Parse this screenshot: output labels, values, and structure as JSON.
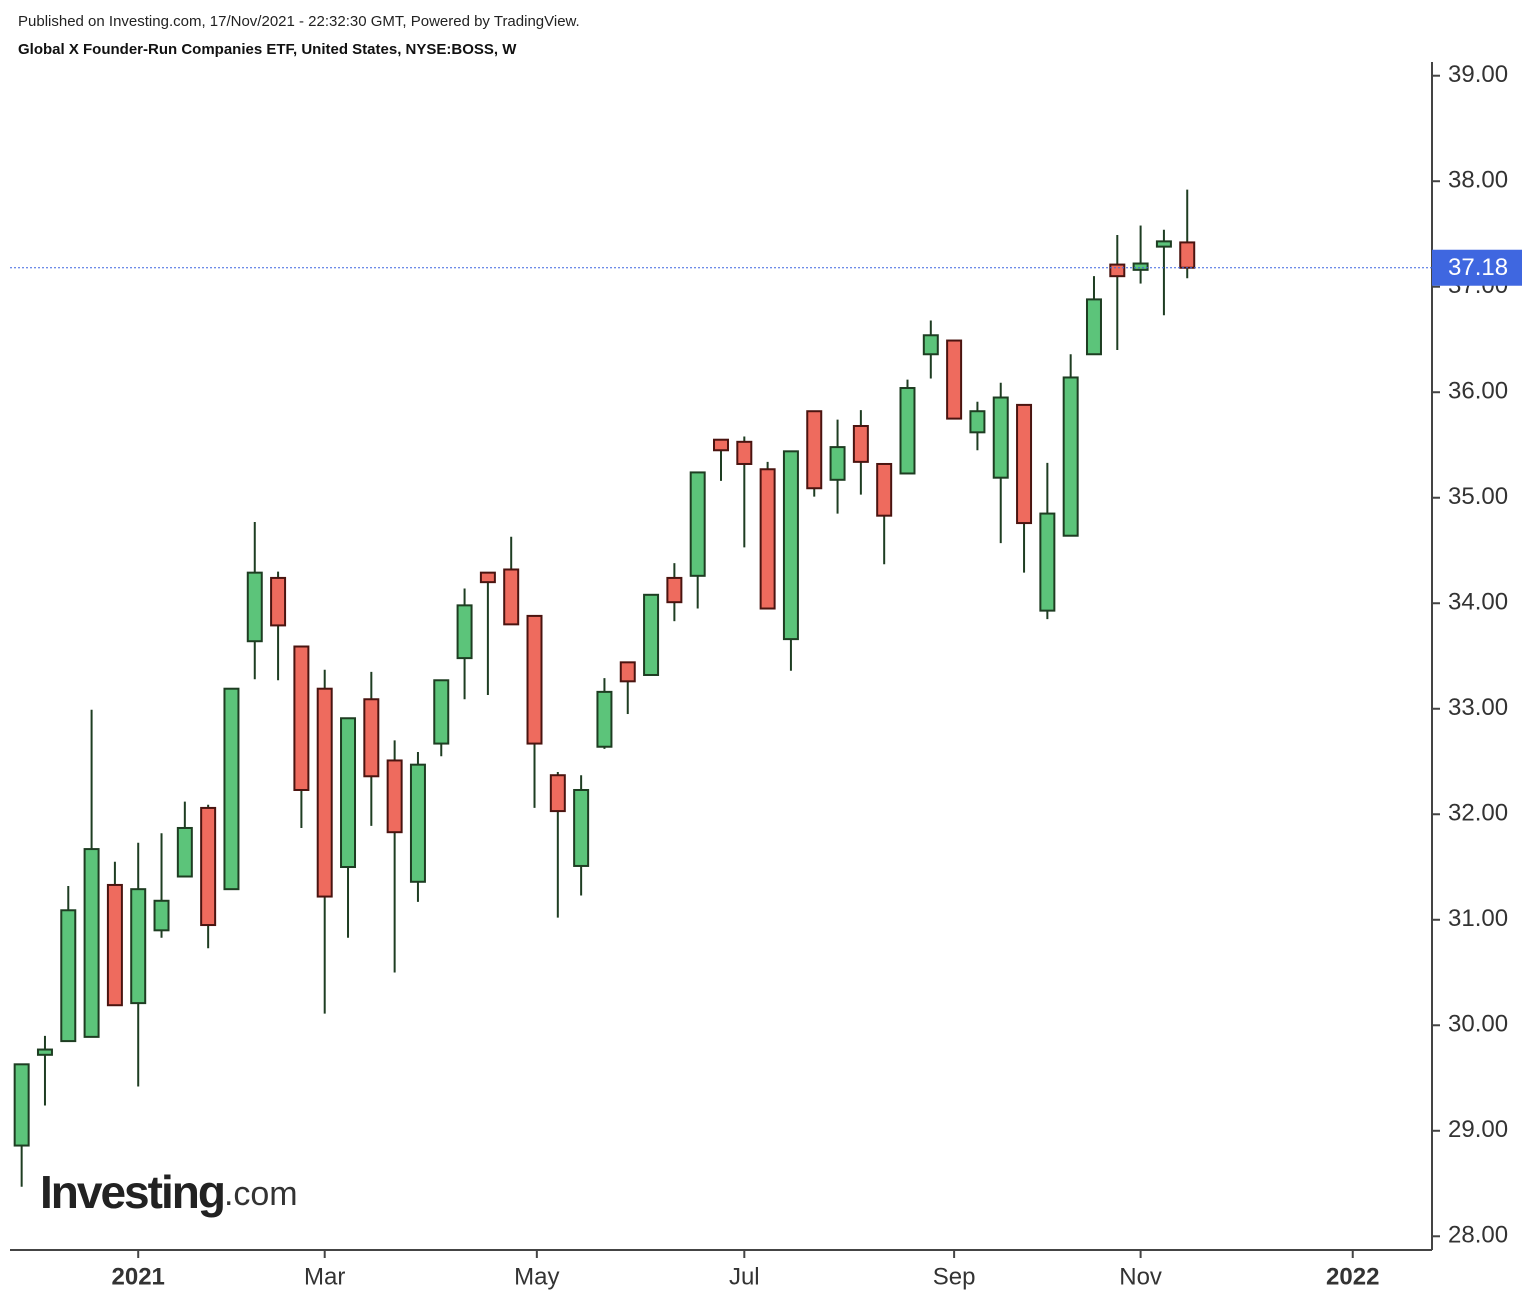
{
  "chart_data": {
    "type": "candlestick",
    "published": "Published on Investing.com, 17/Nov/2021 - 22:32:30 GMT, Powered by TradingView.",
    "title": "Global X Founder-Run Companies ETF, United States, NYSE:BOSS, W",
    "logo": "Investing",
    "logo_suffix": ".com",
    "up_color": "#5cc47a",
    "down_color": "#ee6b5e",
    "open": [
      28.86,
      29.72,
      29.85,
      29.89,
      31.33,
      30.21,
      30.9,
      31.41,
      32.06,
      31.29,
      33.64,
      34.24,
      33.59,
      33.19,
      31.5,
      33.09,
      32.51,
      31.36,
      32.67,
      33.48,
      34.29,
      34.32,
      33.88,
      32.37,
      31.51,
      32.64,
      33.44,
      33.32,
      34.24,
      34.26,
      35.55,
      35.53,
      35.27,
      33.66,
      35.82,
      35.17,
      35.68,
      35.32,
      35.23,
      36.36,
      36.49,
      35.62,
      35.19,
      35.88,
      33.93,
      34.64,
      36.36,
      37.21,
      37.16,
      37.38,
      37.42
    ],
    "high": [
      29.63,
      29.9,
      31.32,
      32.99,
      31.55,
      31.73,
      31.82,
      32.12,
      32.09,
      33.19,
      34.77,
      34.3,
      33.59,
      33.37,
      32.91,
      33.35,
      32.7,
      32.59,
      33.27,
      34.14,
      34.29,
      34.63,
      33.88,
      32.4,
      32.37,
      33.29,
      33.44,
      34.08,
      34.38,
      35.24,
      35.55,
      35.58,
      35.34,
      35.44,
      35.82,
      35.74,
      35.83,
      35.32,
      36.12,
      36.68,
      36.49,
      35.91,
      36.09,
      35.88,
      35.33,
      36.36,
      37.1,
      37.49,
      37.58,
      37.54,
      37.92
    ],
    "low": [
      28.47,
      29.24,
      29.85,
      29.89,
      30.19,
      29.42,
      30.83,
      31.41,
      30.73,
      31.29,
      33.28,
      33.27,
      31.87,
      30.11,
      30.83,
      31.89,
      30.5,
      31.17,
      32.55,
      33.09,
      33.13,
      33.8,
      32.06,
      31.02,
      31.23,
      32.62,
      32.95,
      33.32,
      33.83,
      33.95,
      35.16,
      34.53,
      33.95,
      33.36,
      35.01,
      34.85,
      35.03,
      34.37,
      35.23,
      36.13,
      35.75,
      35.45,
      34.57,
      34.29,
      33.85,
      34.64,
      36.36,
      36.4,
      37.03,
      36.73,
      37.08
    ],
    "close": [
      29.63,
      29.77,
      31.09,
      31.67,
      30.19,
      31.29,
      31.18,
      31.87,
      30.95,
      33.19,
      34.29,
      33.79,
      32.23,
      31.22,
      32.91,
      32.36,
      31.83,
      32.47,
      33.27,
      33.98,
      34.2,
      33.8,
      32.67,
      32.03,
      32.23,
      33.16,
      33.26,
      34.08,
      34.01,
      35.24,
      35.45,
      35.32,
      33.95,
      35.44,
      35.09,
      35.48,
      35.34,
      34.83,
      36.04,
      36.54,
      35.75,
      35.82,
      35.95,
      34.76,
      34.85,
      36.14,
      36.88,
      37.1,
      37.22,
      37.43,
      37.18
    ],
    "last_price": 37.18,
    "last_price_color": "#3f67e0",
    "ylim": [
      27.87,
      39.13
    ],
    "yticks": [
      {
        "value": 28,
        "label": "28.00"
      },
      {
        "value": 29,
        "label": "29.00"
      },
      {
        "value": 30,
        "label": "30.00"
      },
      {
        "value": 31,
        "label": "31.00"
      },
      {
        "value": 32,
        "label": "32.00"
      },
      {
        "value": 33,
        "label": "33.00"
      },
      {
        "value": 34,
        "label": "34.00"
      },
      {
        "value": 35,
        "label": "35.00"
      },
      {
        "value": 36,
        "label": "36.00"
      },
      {
        "value": 37,
        "label": "37.00"
      },
      {
        "value": 38,
        "label": "38.00"
      },
      {
        "value": 39,
        "label": "39.00"
      }
    ],
    "xlim": [
      -0.5,
      60.5
    ],
    "xticks": [
      {
        "value": 5,
        "label": "2021"
      },
      {
        "value": 13,
        "label": "Mar"
      },
      {
        "value": 22.1,
        "label": "May"
      },
      {
        "value": 31,
        "label": "Jul"
      },
      {
        "value": 40,
        "label": "Sep"
      },
      {
        "value": 48,
        "label": "Nov"
      },
      {
        "value": 57.1,
        "label": "2022"
      }
    ]
  }
}
